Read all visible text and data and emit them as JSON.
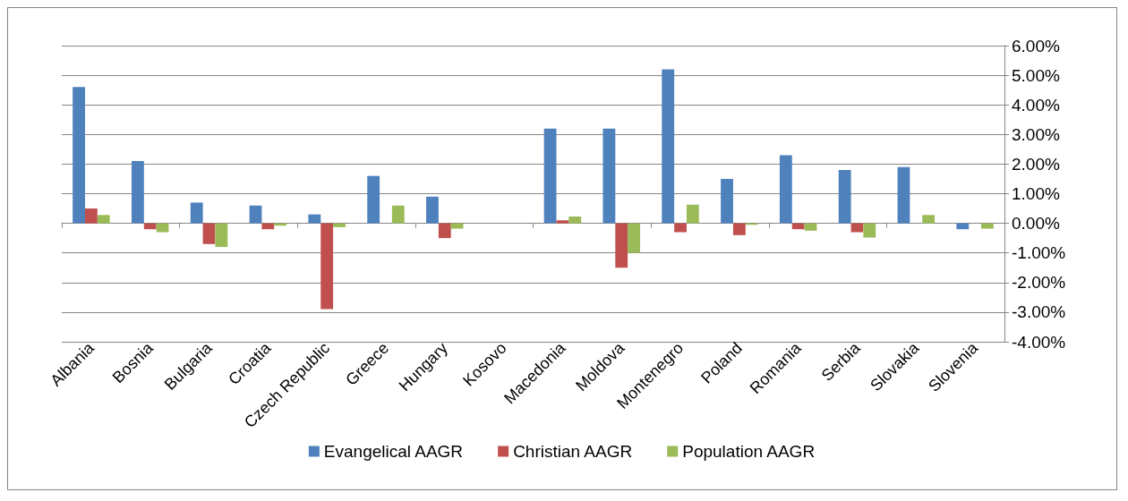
{
  "chart_data": {
    "type": "bar",
    "categories": [
      "Albania",
      "Bosnia",
      "Bulgaria",
      "Croatia",
      "Czech Republic",
      "Greece",
      "Hungary",
      "Kosovo",
      "Macedonia",
      "Moldova",
      "Montenegro",
      "Poland",
      "Romania",
      "Serbia",
      "Slovakia",
      "Slovenia"
    ],
    "series": [
      {
        "name": "Evangelical AAGR",
        "color": "#4f81bd",
        "values": [
          4.6,
          2.1,
          0.7,
          0.6,
          0.3,
          1.6,
          0.9,
          null,
          3.2,
          3.2,
          5.2,
          1.5,
          2.3,
          1.8,
          1.9,
          -0.2
        ]
      },
      {
        "name": "Christian AAGR",
        "color": "#c0504d",
        "values": [
          0.5,
          -0.2,
          -0.7,
          -0.2,
          -2.9,
          null,
          -0.5,
          null,
          0.1,
          -1.5,
          -0.3,
          -0.4,
          -0.2,
          -0.3,
          null,
          null
        ]
      },
      {
        "name": "Population AAGR",
        "color": "#9bbb59",
        "values": [
          0.28,
          -0.3,
          -0.8,
          -0.08,
          -0.13,
          0.6,
          -0.18,
          null,
          0.23,
          -1.0,
          0.63,
          -0.05,
          -0.25,
          -0.48,
          0.28,
          -0.18
        ]
      }
    ],
    "ylim": [
      -4,
      6
    ],
    "yticks": [
      {
        "value": -4,
        "label": "-4.00%"
      },
      {
        "value": -3,
        "label": "-3.00%"
      },
      {
        "value": -2,
        "label": "-2.00%"
      },
      {
        "value": -1,
        "label": "-1.00%"
      },
      {
        "value": 0,
        "label": "0.00%"
      },
      {
        "value": 1,
        "label": "1.00%"
      },
      {
        "value": 2,
        "label": "2.00%"
      },
      {
        "value": 3,
        "label": "3.00%"
      },
      {
        "value": 4,
        "label": "4.00%"
      },
      {
        "value": 5,
        "label": "5.00%"
      },
      {
        "value": 6,
        "label": "6.00%"
      }
    ],
    "grid": "y",
    "legend": "bottom"
  }
}
